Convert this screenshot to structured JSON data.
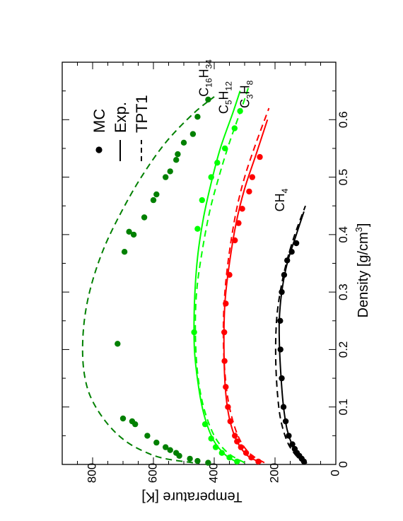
{
  "chart_data": {
    "type": "line",
    "orientation": "rotated-90-ccw",
    "xlabel": "Density [g/cm",
    "xlabel_sup": "3",
    "xlabel_end": "]",
    "ylabel": "Temperature [K]",
    "xlim": [
      0,
      0.7
    ],
    "ylim": [
      0,
      900
    ],
    "x_ticks": [
      {
        "value": 0,
        "label": "0"
      },
      {
        "value": 0.1,
        "label": "0.1"
      },
      {
        "value": 0.2,
        "label": "0.2"
      },
      {
        "value": 0.3,
        "label": "0.3"
      },
      {
        "value": 0.4,
        "label": "0.4"
      },
      {
        "value": 0.5,
        "label": "0.5"
      },
      {
        "value": 0.6,
        "label": "0.6"
      }
    ],
    "y_ticks": [
      {
        "value": 0,
        "label": "0"
      },
      {
        "value": 200,
        "label": "200"
      },
      {
        "value": 400,
        "label": "400"
      },
      {
        "value": 600,
        "label": "600"
      },
      {
        "value": 800,
        "label": "800"
      }
    ],
    "legend": {
      "placement": "top-right",
      "entries": [
        {
          "label": "MC",
          "style": "marker"
        },
        {
          "label": "Exp.",
          "style": "solid"
        },
        {
          "label": "TPT1",
          "style": "dashed"
        }
      ]
    },
    "series": [
      {
        "label_main": "CH",
        "label_sub": "4",
        "label_at": [
          0.44,
          170
        ],
        "color": "#000000",
        "mc": [
          [
            0.005,
            105
          ],
          [
            0.01,
            112
          ],
          [
            0.015,
            120
          ],
          [
            0.02,
            128
          ],
          [
            0.027,
            135
          ],
          [
            0.035,
            143
          ],
          [
            0.05,
            155
          ],
          [
            0.075,
            165
          ],
          [
            0.1,
            172
          ],
          [
            0.15,
            178
          ],
          [
            0.2,
            182
          ],
          [
            0.25,
            183
          ],
          [
            0.3,
            178
          ],
          [
            0.33,
            170
          ],
          [
            0.355,
            160
          ],
          [
            0.37,
            145
          ],
          [
            0.385,
            130
          ]
        ],
        "exp": [
          [
            0.002,
            95
          ],
          [
            0.01,
            115
          ],
          [
            0.03,
            140
          ],
          [
            0.06,
            160
          ],
          [
            0.1,
            172
          ],
          [
            0.15,
            180
          ],
          [
            0.2,
            185
          ],
          [
            0.25,
            186
          ],
          [
            0.3,
            178
          ],
          [
            0.35,
            160
          ],
          [
            0.4,
            130
          ],
          [
            0.44,
            105
          ]
        ],
        "tpt1": [
          [
            0.002,
            100
          ],
          [
            0.015,
            130
          ],
          [
            0.04,
            160
          ],
          [
            0.08,
            182
          ],
          [
            0.13,
            193
          ],
          [
            0.19,
            198
          ],
          [
            0.25,
            195
          ],
          [
            0.3,
            183
          ],
          [
            0.35,
            163
          ],
          [
            0.4,
            135
          ],
          [
            0.45,
            100
          ]
        ]
      },
      {
        "label_main": "C",
        "label_sub": "3",
        "label_main2": "H",
        "label_sub2": "8",
        "label_at": [
          0.62,
          285
        ],
        "color": "#ff0000",
        "mc": [
          [
            0.005,
            255
          ],
          [
            0.012,
            278
          ],
          [
            0.02,
            295
          ],
          [
            0.03,
            312
          ],
          [
            0.04,
            325
          ],
          [
            0.05,
            332
          ],
          [
            0.075,
            347
          ],
          [
            0.1,
            355
          ],
          [
            0.135,
            362
          ],
          [
            0.18,
            366
          ],
          [
            0.23,
            367
          ],
          [
            0.28,
            362
          ],
          [
            0.33,
            350
          ],
          [
            0.39,
            332
          ],
          [
            0.42,
            320
          ],
          [
            0.445,
            308
          ],
          [
            0.475,
            285
          ],
          [
            0.5,
            275
          ],
          [
            0.535,
            250
          ]
        ],
        "exp": [
          [
            0.003,
            245
          ],
          [
            0.015,
            290
          ],
          [
            0.04,
            325
          ],
          [
            0.08,
            350
          ],
          [
            0.13,
            363
          ],
          [
            0.2,
            368
          ],
          [
            0.28,
            365
          ],
          [
            0.35,
            350
          ],
          [
            0.42,
            328
          ],
          [
            0.48,
            300
          ],
          [
            0.54,
            262
          ],
          [
            0.6,
            225
          ]
        ],
        "tpt1": [
          [
            0.003,
            235
          ],
          [
            0.02,
            285
          ],
          [
            0.05,
            322
          ],
          [
            0.1,
            350
          ],
          [
            0.16,
            365
          ],
          [
            0.23,
            370
          ],
          [
            0.3,
            365
          ],
          [
            0.37,
            350
          ],
          [
            0.44,
            328
          ],
          [
            0.5,
            300
          ],
          [
            0.56,
            262
          ],
          [
            0.62,
            220
          ]
        ]
      },
      {
        "label_main": "C",
        "label_sub": "5",
        "label_main2": "H",
        "label_sub2": "12",
        "label_at": [
          0.61,
          355
        ],
        "color": "#00ff00",
        "mc": [
          [
            0.005,
            325
          ],
          [
            0.012,
            350
          ],
          [
            0.02,
            375
          ],
          [
            0.03,
            395
          ],
          [
            0.045,
            410
          ],
          [
            0.07,
            430
          ],
          [
            0.23,
            466
          ],
          [
            0.41,
            455
          ],
          [
            0.46,
            440
          ],
          [
            0.5,
            410
          ],
          [
            0.525,
            390
          ],
          [
            0.55,
            365
          ],
          [
            0.585,
            333
          ],
          [
            0.615,
            315
          ]
        ],
        "exp": [
          [
            0.003,
            320
          ],
          [
            0.015,
            360
          ],
          [
            0.04,
            400
          ],
          [
            0.08,
            430
          ],
          [
            0.13,
            450
          ],
          [
            0.2,
            465
          ],
          [
            0.28,
            465
          ],
          [
            0.36,
            455
          ],
          [
            0.43,
            435
          ],
          [
            0.49,
            410
          ],
          [
            0.55,
            380
          ],
          [
            0.61,
            340
          ],
          [
            0.65,
            315
          ]
        ],
        "tpt1": [
          [
            0.003,
            300
          ],
          [
            0.02,
            355
          ],
          [
            0.05,
            400
          ],
          [
            0.1,
            435
          ],
          [
            0.16,
            455
          ],
          [
            0.23,
            462
          ],
          [
            0.3,
            458
          ],
          [
            0.37,
            440
          ],
          [
            0.44,
            415
          ],
          [
            0.5,
            385
          ],
          [
            0.56,
            350
          ],
          [
            0.62,
            310
          ],
          [
            0.66,
            285
          ]
        ]
      },
      {
        "label_main": "C",
        "label_sub": "16",
        "label_main2": "H",
        "label_sub2": "34",
        "label_at": [
          0.64,
          420
        ],
        "color": "#008000",
        "mc": [
          [
            0.003,
            420
          ],
          [
            0.006,
            455
          ],
          [
            0.01,
            480
          ],
          [
            0.015,
            515
          ],
          [
            0.02,
            525
          ],
          [
            0.025,
            545
          ],
          [
            0.03,
            560
          ],
          [
            0.038,
            590
          ],
          [
            0.05,
            620
          ],
          [
            0.07,
            660
          ],
          [
            0.075,
            670
          ],
          [
            0.08,
            700
          ],
          [
            0.21,
            718
          ],
          [
            0.37,
            695
          ],
          [
            0.4,
            665
          ],
          [
            0.405,
            680
          ],
          [
            0.43,
            630
          ],
          [
            0.46,
            600
          ],
          [
            0.47,
            590
          ],
          [
            0.5,
            560
          ],
          [
            0.51,
            545
          ],
          [
            0.53,
            525
          ],
          [
            0.54,
            520
          ],
          [
            0.56,
            500
          ],
          [
            0.575,
            470
          ],
          [
            0.605,
            455
          ],
          [
            0.635,
            420
          ]
        ],
        "tpt1": [
          [
            0.003,
            470
          ],
          [
            0.01,
            560
          ],
          [
            0.02,
            620
          ],
          [
            0.04,
            690
          ],
          [
            0.07,
            750
          ],
          [
            0.11,
            800
          ],
          [
            0.15,
            825
          ],
          [
            0.2,
            833
          ],
          [
            0.26,
            825
          ],
          [
            0.32,
            800
          ],
          [
            0.38,
            760
          ],
          [
            0.44,
            705
          ],
          [
            0.5,
            640
          ],
          [
            0.56,
            560
          ],
          [
            0.61,
            470
          ],
          [
            0.64,
            400
          ]
        ]
      }
    ]
  }
}
